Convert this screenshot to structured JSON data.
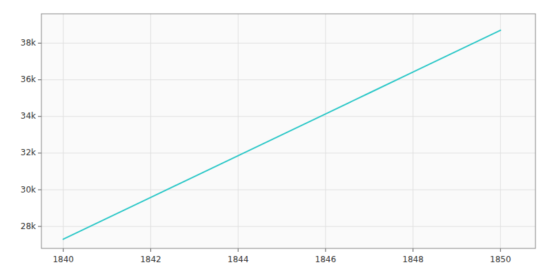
{
  "chart_data": {
    "type": "line",
    "x": [
      1840,
      1841,
      1842,
      1843,
      1844,
      1845,
      1846,
      1847,
      1848,
      1849,
      1850
    ],
    "values": [
      27300,
      28440,
      29580,
      30720,
      31860,
      33000,
      34140,
      35280,
      36420,
      37560,
      38700
    ],
    "color": "#2ec8c8",
    "xlim": [
      1839.5,
      1850.8
    ],
    "ylim": [
      26800,
      39600
    ],
    "xticks": [
      1840,
      1842,
      1844,
      1846,
      1848,
      1850
    ],
    "yticks": [
      {
        "value": 28000,
        "label": "28k"
      },
      {
        "value": 30000,
        "label": "30k"
      },
      {
        "value": 32000,
        "label": "32k"
      },
      {
        "value": 34000,
        "label": "34k"
      },
      {
        "value": 36000,
        "label": "36k"
      },
      {
        "value": 38000,
        "label": "38k"
      }
    ],
    "grid": true
  }
}
